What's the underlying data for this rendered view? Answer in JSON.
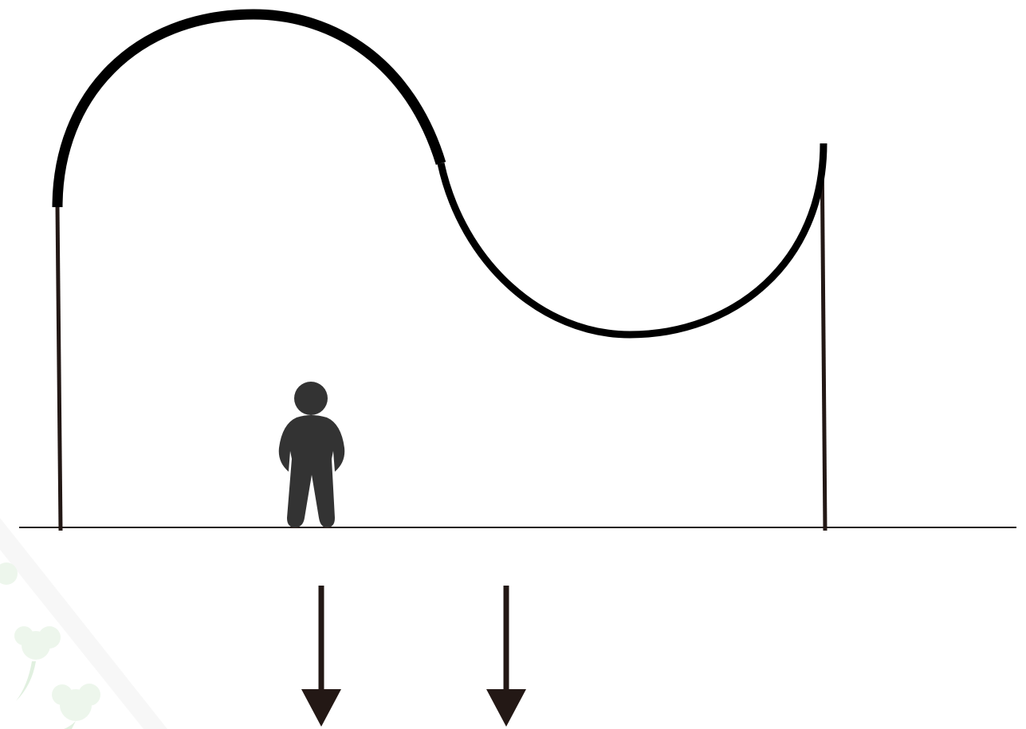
{
  "diagram": {
    "colors": {
      "track": "#000000",
      "pole": "#231815",
      "ground": "#231815",
      "person": "#333333",
      "arrow": "#231815",
      "watermark": "#9fd39a"
    },
    "icons": {
      "person": "person-icon",
      "arrow": "down-arrow-icon",
      "watermark": "flower-watermark-icon"
    }
  }
}
